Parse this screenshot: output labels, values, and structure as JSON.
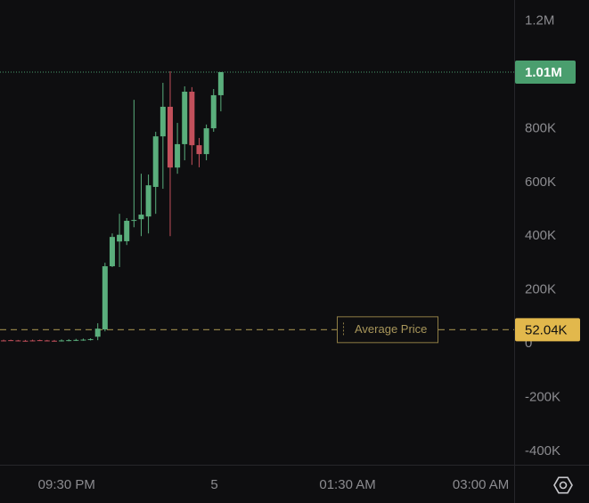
{
  "chart_data": {
    "type": "candlestick",
    "categories": [
      null,
      null,
      null,
      null,
      null,
      null,
      null,
      null,
      null,
      null,
      null,
      null,
      null,
      null,
      null,
      null,
      null,
      null,
      null,
      null,
      null,
      null,
      null,
      null,
      null,
      null,
      null,
      null,
      null,
      null,
      null
    ],
    "open": [
      12000,
      13000,
      12000,
      11000,
      12000,
      13000,
      12000,
      11000,
      10000,
      12000,
      13000,
      14000,
      15000,
      26000,
      53000,
      288000,
      380000,
      381000,
      457000,
      463000,
      473000,
      583000,
      771000,
      881000,
      655000,
      742000,
      937000,
      738000,
      705000,
      801000,
      924000
    ],
    "high": [
      15000,
      15000,
      14000,
      14000,
      15000,
      15000,
      14000,
      14000,
      16000,
      17000,
      18000,
      19000,
      20000,
      76000,
      301000,
      410000,
      483000,
      467000,
      907000,
      632000,
      629000,
      788000,
      970000,
      1013000,
      821000,
      957000,
      954000,
      765000,
      815000,
      947000,
      1010000
    ],
    "low": [
      9000,
      10000,
      9000,
      8000,
      9000,
      10000,
      9000,
      8000,
      8000,
      9000,
      10000,
      11000,
      12000,
      13000,
      46000,
      285000,
      285000,
      367000,
      433000,
      400000,
      410000,
      483000,
      576000,
      400000,
      632000,
      682000,
      665000,
      656000,
      682000,
      788000,
      864000
    ],
    "close": [
      11000,
      12000,
      11000,
      10000,
      11000,
      12000,
      11000,
      10000,
      12000,
      13000,
      14000,
      15000,
      17000,
      56000,
      288000,
      397000,
      405000,
      457000,
      460000,
      480000,
      589000,
      771000,
      881000,
      655000,
      742000,
      937000,
      738000,
      705000,
      801000,
      924000,
      1010000
    ],
    "up_color": "#5aae7c",
    "down_color": "#c2505b",
    "xlim": [
      -0.5,
      70.5
    ],
    "xticks": [
      {
        "value": 8.7,
        "label": "09:30 PM"
      },
      {
        "value": 29.1,
        "label": "5"
      },
      {
        "value": 47.5,
        "label": "01:30 AM"
      },
      {
        "value": 65.9,
        "label": "03:00 AM"
      }
    ],
    "ylim": [
      -450000,
      1278000
    ],
    "yticks": [
      {
        "value": -400000,
        "label": "-400K"
      },
      {
        "value": -200000,
        "label": "-200K"
      },
      0,
      {
        "value": 200000,
        "label": "200K"
      },
      {
        "value": 400000,
        "label": "400K"
      },
      {
        "value": 600000,
        "label": "600K"
      },
      {
        "value": 800000,
        "label": "800K"
      },
      {
        "value": 1200000,
        "label": "1.2M"
      }
    ],
    "grid": false,
    "current_price": {
      "value": 1010000,
      "label": "1.01M",
      "color": "#4a9e6e"
    },
    "average_price": {
      "value": 52040,
      "label": "52.04K",
      "name": "Average Price",
      "color": "#e2b84c"
    }
  }
}
